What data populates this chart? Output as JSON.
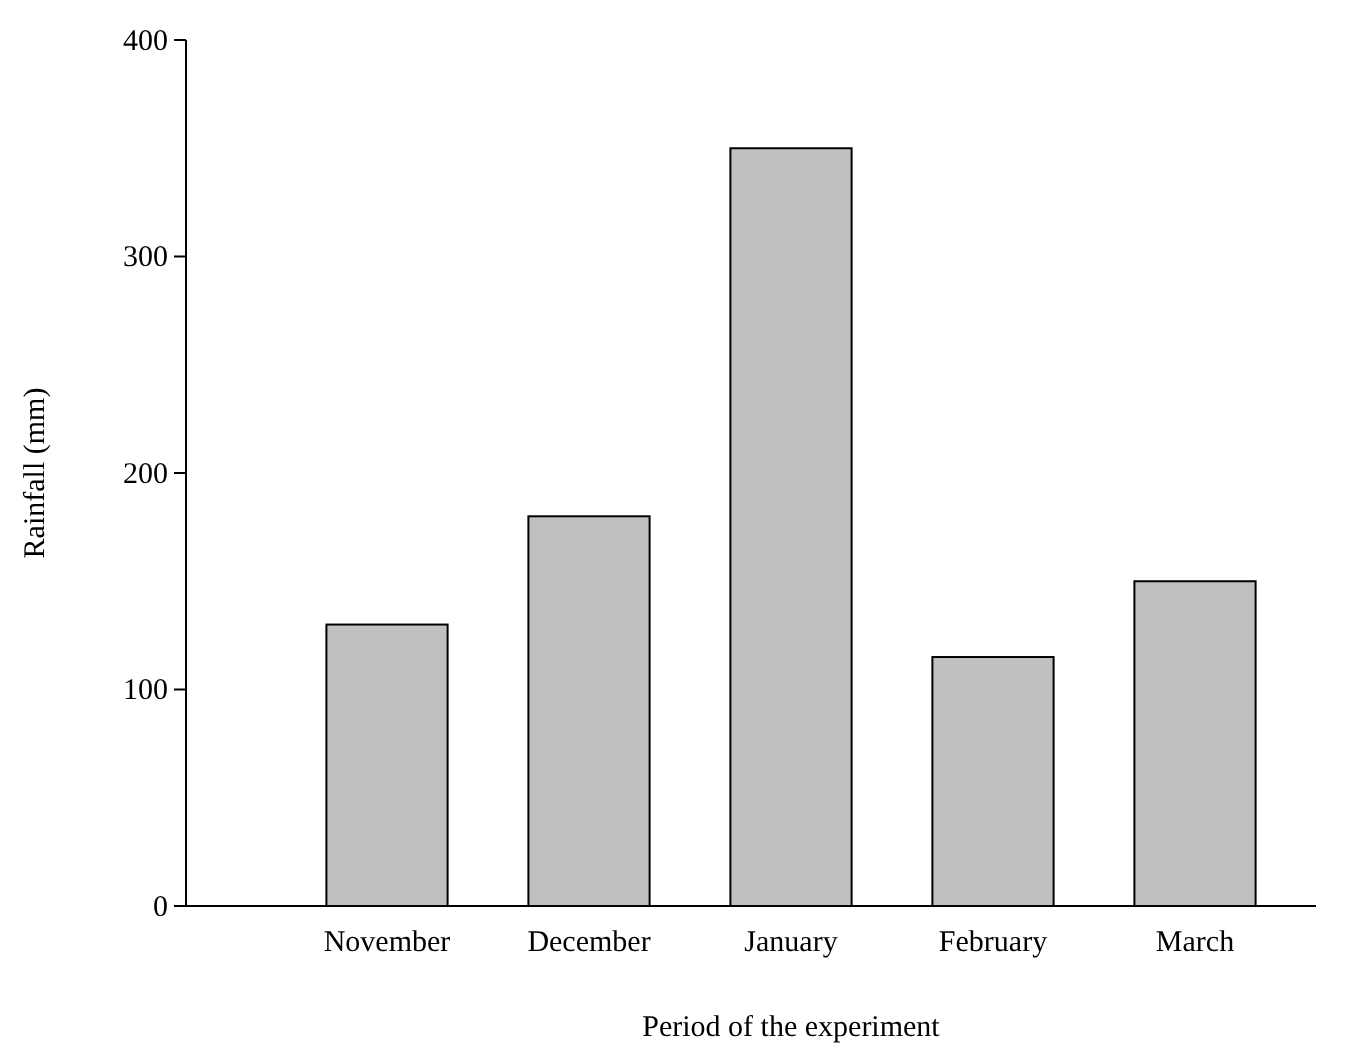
{
  "chart_data": {
    "type": "bar",
    "xlabel": "Period of the experiment",
    "ylabel": "Rainfall (mm)",
    "categories": [
      "November",
      "December",
      "January",
      "February",
      "March"
    ],
    "values": [
      130,
      180,
      350,
      115,
      150
    ],
    "color": "#c0c0c0",
    "ylim": [
      0,
      400
    ],
    "yticks": [
      0,
      100,
      200,
      300,
      400
    ],
    "grid": false
  }
}
